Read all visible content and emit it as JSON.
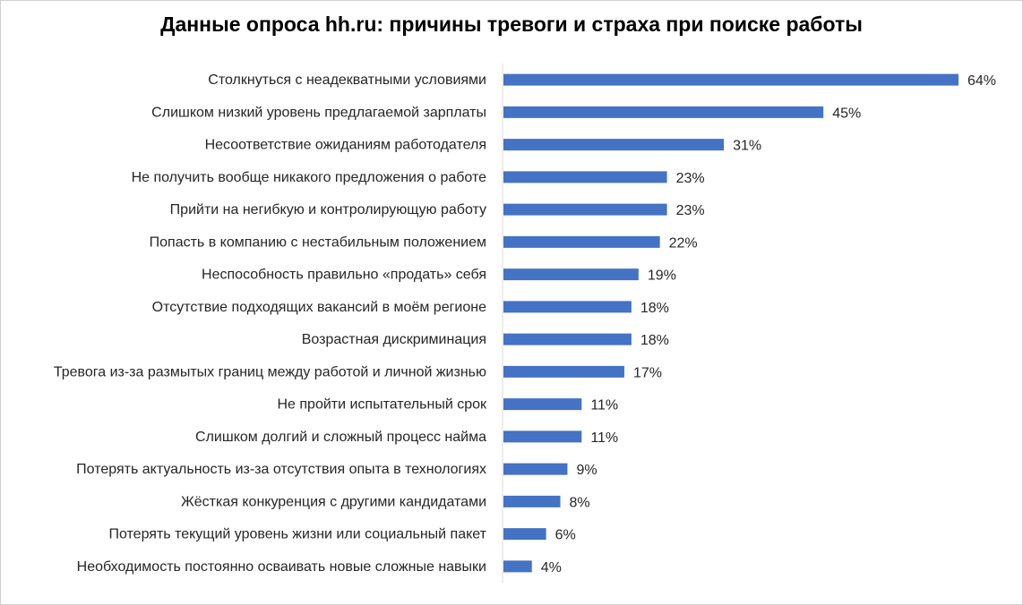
{
  "chart_data": {
    "type": "bar",
    "orientation": "horizontal",
    "title": "Данные опроса hh.ru: причины тревоги и страха при поиске работы",
    "categories": [
      "Столкнуться с неадекватными условиями",
      "Слишком низкий уровень предлагаемой зарплаты",
      "Несоответствие ожиданиям работодателя",
      "Не получить вообще никакого предложения о работе",
      "Прийти на негибкую и контролирующую работу",
      "Попасть в компанию с нестабильным положением",
      "Неспособность правильно «продать» себя",
      "Отсутствие подходящих вакансий в моём регионе",
      "Возрастная дискриминация",
      "Тревога из-за размытых границ между работой и личной жизнью",
      "Не пройти испытательный срок",
      "Слишком долгий и сложный процесс найма",
      "Потерять актуальность из-за отсутствия опыта в технологиях",
      "Жёсткая конкуренция с другими кандидатами",
      "Потерять текущий уровень жизни или социальный пакет",
      "Необходимость постоянно осваивать новые сложные навыки"
    ],
    "values": [
      64,
      45,
      31,
      23,
      23,
      22,
      19,
      18,
      18,
      17,
      11,
      11,
      9,
      8,
      6,
      4
    ],
    "value_labels": [
      "64%",
      "45%",
      "31%",
      "23%",
      "23%",
      "22%",
      "19%",
      "18%",
      "18%",
      "17%",
      "11%",
      "11%",
      "9%",
      "8%",
      "6%",
      "4%"
    ],
    "unit": "%",
    "xlim": [
      0,
      64
    ],
    "grid": false,
    "legend": "none",
    "bar_color": "#4472C4"
  }
}
